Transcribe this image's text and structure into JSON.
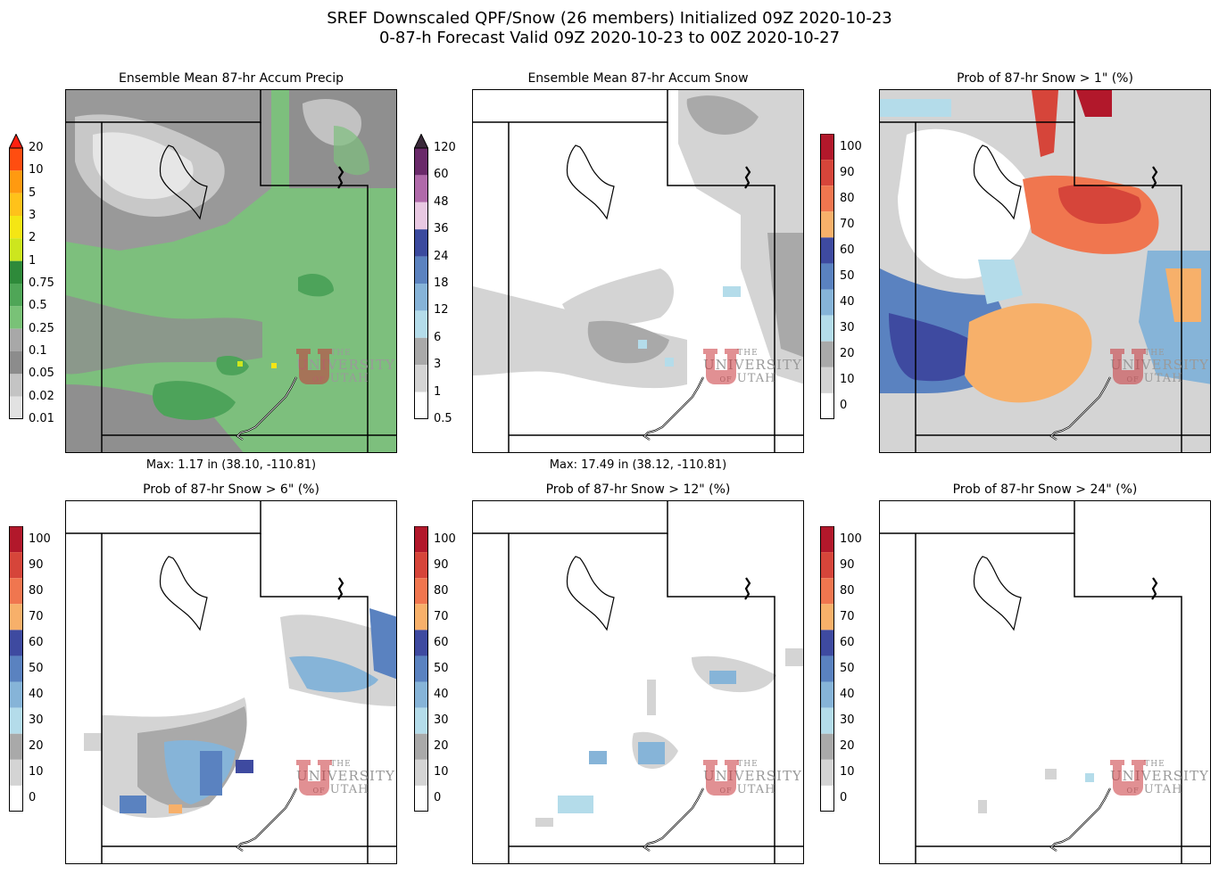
{
  "title": {
    "line1": "SREF Downscaled QPF/Snow (26 members) Initialized 09Z 2020-10-23",
    "line2": "0-87-h Forecast Valid 09Z 2020-10-23 to 00Z 2020-10-27"
  },
  "panels": [
    {
      "title": "Ensemble Mean 87-hr Accum Precip",
      "max": "Max: 1.17 in (38.10, -110.81)"
    },
    {
      "title": "Ensemble Mean 87-hr Accum Snow",
      "max": "Max: 17.49 in (38.12, -110.81)"
    },
    {
      "title": "Prob of 87-hr Snow > 1\" (%)",
      "max": ""
    },
    {
      "title": "Prob of 87-hr Snow > 6\" (%)",
      "max": ""
    },
    {
      "title": "Prob of 87-hr Snow > 12\" (%)",
      "max": ""
    },
    {
      "title": "Prob of 87-hr Snow > 24\" (%)",
      "max": ""
    }
  ],
  "colorbars": {
    "precip": {
      "labels": [
        "20",
        "10",
        "5",
        "3",
        "2",
        "1",
        "0.75",
        "0.5",
        "0.25",
        "0.1",
        "0.05",
        "0.02",
        "0.01"
      ],
      "colors": [
        "#ff4d10",
        "#ff9a10",
        "#ffc21a",
        "#f5e614",
        "#cde61e",
        "#2e8a3a",
        "#4fa657",
        "#79c277",
        "#a8a8a8",
        "#8c8c8c",
        "#c4c4c4",
        "#e2e2e2"
      ],
      "extend_color": "#ff2010"
    },
    "snow": {
      "labels": [
        "120",
        "60",
        "48",
        "36",
        "24",
        "18",
        "12",
        "6",
        "3",
        "1",
        "0.5"
      ],
      "colors": [
        "#6a2a6a",
        "#b06aaa",
        "#e8c8e2",
        "#3b4a9e",
        "#5b82bf",
        "#86b3d8",
        "#b4dcea",
        "#a9a9a9",
        "#d4d4d4",
        "#ffffff"
      ],
      "extend_color": "#3a2a3a"
    },
    "prob": {
      "labels": [
        "100",
        "90",
        "80",
        "70",
        "60",
        "50",
        "40",
        "30",
        "20",
        "10",
        "0"
      ],
      "colors": [
        "#b2182b",
        "#d6453a",
        "#f0764f",
        "#f7b06a",
        "#3e4aa0",
        "#5a82c0",
        "#86b4d8",
        "#b4dcea",
        "#a9a9a9",
        "#d4d4d4",
        "#ffffff"
      ]
    }
  },
  "logo": {
    "the": "THE",
    "university": "UNIVERSITY",
    "of": "OF",
    "utah": "UTAH",
    "color": "#c8343a"
  }
}
